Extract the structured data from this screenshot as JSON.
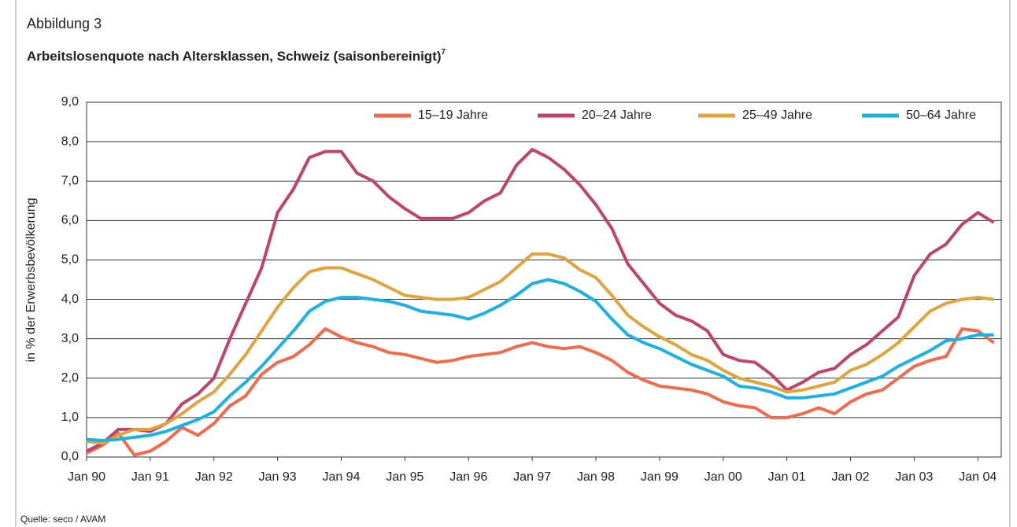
{
  "header": "Abbildung 3",
  "source": "Quelle: seco / AVAM",
  "chart_data": {
    "type": "line",
    "title": "Arbeitslosenquote nach Altersklassen, Schweiz (saisonbereinigt)",
    "title_footnote": "7",
    "y_label": "in % der Erwerbsbevölkerung",
    "ylim": [
      0,
      9
    ],
    "yticks": [
      {
        "value": 0,
        "label": "0,0"
      },
      {
        "value": 1,
        "label": "1,0"
      },
      {
        "value": 2,
        "label": "2,0"
      },
      {
        "value": 3,
        "label": "3,0"
      },
      {
        "value": 4,
        "label": "4,0"
      },
      {
        "value": 5,
        "label": "5,0"
      },
      {
        "value": 6,
        "label": "6,0"
      },
      {
        "value": 7,
        "label": "7,0"
      },
      {
        "value": 8,
        "label": "8,0"
      },
      {
        "value": 9,
        "label": "9,0"
      }
    ],
    "grid": true,
    "legend": "upper right",
    "categories": [
      "Jan 90",
      null,
      null,
      null,
      "Jan 91",
      null,
      null,
      null,
      "Jan 92",
      null,
      null,
      null,
      "Jan 93",
      null,
      null,
      null,
      "Jan 94",
      null,
      null,
      null,
      "Jan 95",
      null,
      null,
      null,
      "Jan 96",
      null,
      null,
      null,
      "Jan 97",
      null,
      null,
      null,
      "Jan 98",
      null,
      null,
      null,
      "Jan 99",
      null,
      null,
      null,
      "Jan 00",
      null,
      null,
      null,
      "Jan 01",
      null,
      null,
      null,
      "Jan 02",
      null,
      null,
      null,
      "Jan 03",
      null,
      null,
      null,
      "Jan 04",
      null
    ],
    "series": [
      {
        "name": "15–19 Jahre",
        "color": "#f26a4b",
        "values": [
          0.1,
          0.3,
          0.6,
          0.05,
          0.15,
          0.4,
          0.75,
          0.55,
          0.85,
          1.3,
          1.55,
          2.1,
          2.4,
          2.55,
          2.85,
          3.25,
          3.05,
          2.9,
          2.8,
          2.65,
          2.6,
          2.5,
          2.4,
          2.45,
          2.55,
          2.6,
          2.65,
          2.8,
          2.9,
          2.8,
          2.75,
          2.8,
          2.65,
          2.45,
          2.15,
          1.95,
          1.8,
          1.75,
          1.7,
          1.6,
          1.4,
          1.3,
          1.25,
          1.0,
          1.0,
          1.1,
          1.25,
          1.1,
          1.4,
          1.6,
          1.7,
          2.0,
          2.3,
          2.45,
          2.55,
          3.25,
          3.2,
          2.9
        ]
      },
      {
        "name": "20–24 Jahre",
        "color": "#c0436b",
        "values": [
          0.15,
          0.35,
          0.7,
          0.7,
          0.65,
          0.85,
          1.35,
          1.6,
          2.0,
          3.0,
          3.9,
          4.8,
          6.2,
          6.8,
          7.6,
          7.75,
          7.75,
          7.2,
          7.0,
          6.6,
          6.3,
          6.05,
          6.05,
          6.05,
          6.2,
          6.5,
          6.7,
          7.4,
          7.8,
          7.6,
          7.3,
          6.9,
          6.4,
          5.8,
          4.9,
          4.4,
          3.9,
          3.6,
          3.45,
          3.2,
          2.6,
          2.45,
          2.4,
          2.1,
          1.7,
          1.9,
          2.15,
          2.25,
          2.6,
          2.85,
          3.2,
          3.55,
          4.6,
          5.15,
          5.4,
          5.9,
          6.2,
          5.95
        ]
      },
      {
        "name": "25–49 Jahre",
        "color": "#e0a43a",
        "values": [
          0.4,
          0.35,
          0.55,
          0.7,
          0.7,
          0.85,
          1.1,
          1.4,
          1.65,
          2.1,
          2.6,
          3.2,
          3.8,
          4.3,
          4.7,
          4.8,
          4.8,
          4.65,
          4.5,
          4.3,
          4.1,
          4.05,
          4.0,
          4.0,
          4.05,
          4.25,
          4.45,
          4.8,
          5.15,
          5.15,
          5.05,
          4.75,
          4.55,
          4.1,
          3.6,
          3.3,
          3.05,
          2.85,
          2.6,
          2.45,
          2.2,
          2.0,
          1.9,
          1.8,
          1.65,
          1.7,
          1.8,
          1.9,
          2.2,
          2.35,
          2.6,
          2.9,
          3.3,
          3.7,
          3.9,
          4.0,
          4.05,
          4.0
        ]
      },
      {
        "name": "50–64 Jahre",
        "color": "#1ab2e6",
        "values": [
          0.45,
          0.42,
          0.45,
          0.5,
          0.55,
          0.65,
          0.8,
          0.95,
          1.15,
          1.55,
          1.9,
          2.3,
          2.75,
          3.2,
          3.7,
          3.95,
          4.05,
          4.05,
          4.0,
          3.95,
          3.85,
          3.7,
          3.65,
          3.6,
          3.5,
          3.65,
          3.85,
          4.1,
          4.4,
          4.5,
          4.4,
          4.2,
          3.95,
          3.5,
          3.1,
          2.9,
          2.75,
          2.55,
          2.35,
          2.2,
          2.05,
          1.8,
          1.75,
          1.65,
          1.5,
          1.5,
          1.55,
          1.6,
          1.75,
          1.9,
          2.05,
          2.3,
          2.5,
          2.7,
          2.95,
          3.0,
          3.1,
          3.1
        ]
      }
    ]
  }
}
